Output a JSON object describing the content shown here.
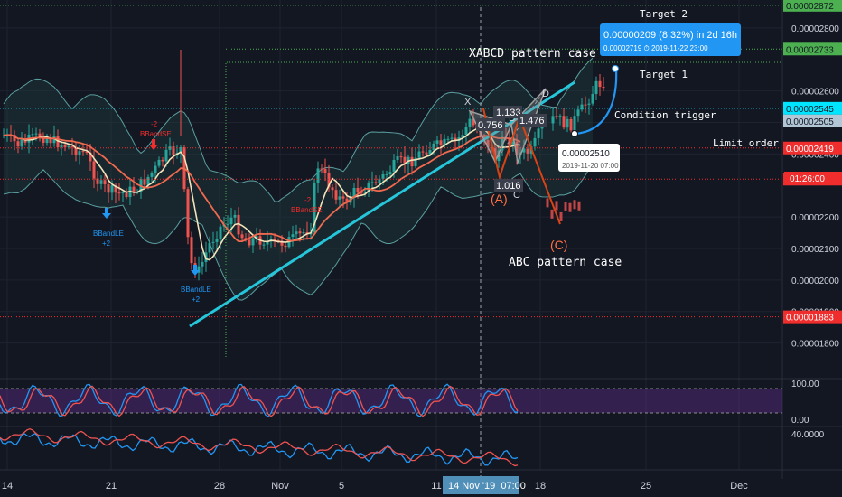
{
  "chart_data": {
    "type": "candlestick",
    "x_tick_labels": [
      "14",
      "21",
      "28",
      "Nov",
      "5",
      "11",
      "18",
      "25",
      "Dec"
    ],
    "crosshair_x_label": "14 Nov '19  07:00",
    "price_axis": {
      "ticks": [
        "0.00002800",
        "0.00002600",
        "0.00002500",
        "0.00002400",
        "0.00002200",
        "0.00002100",
        "0.00002000",
        "0.00001900",
        "0.00001800"
      ],
      "ylim": [
        1.75e-05,
        2.86e-05
      ]
    },
    "price_levels": [
      {
        "value": "0.00002872",
        "color": "#4caf50",
        "line": "green-dotted",
        "text_color": "#131722"
      },
      {
        "value": "0.00002733",
        "color": "#4caf50",
        "line": "green-dotted",
        "text_color": "#131722"
      },
      {
        "value": "0.00002545",
        "color": "#00e5ff",
        "line": "cyan-dotted",
        "text_color": "#131722"
      },
      {
        "value": "0.00002505",
        "color": "#b2c6d6",
        "line": "none",
        "text_color": "#131722"
      },
      {
        "value": "0.00002419",
        "color": "#ef2d2d",
        "line": "red-dotted",
        "text_color": "#ffffff"
      },
      {
        "value": "0.00002320",
        "color": "#ef2d2d",
        "line": "red-dotted",
        "text_color": "#ffffff"
      },
      {
        "value": "0.00001883",
        "color": "#ef2d2d",
        "line": "red-dotted",
        "text_color": "#ffffff"
      }
    ],
    "countdown_label": "01:26:00",
    "annotations": {
      "target2": "Target 2",
      "target1": "Target 1",
      "xabcd_title": "XABCD pattern case",
      "condition_trigger": "Condition trigger",
      "limit_order": "Limit order",
      "abc_title": "ABC pattern case",
      "point_x": "X",
      "point_b": "B",
      "point_c": "C",
      "point_d": "D",
      "point_a_circled": "(A)",
      "point_c_circled": "(C)",
      "ratio_1": "1.133",
      "ratio_2": "0.756",
      "ratio_3": "1.476",
      "ratio_4": "1.016",
      "bband_le_1": "BBandLE",
      "bband_le_1_qty": "+2",
      "bband_le_2": "BBandLE",
      "bband_le_2_qty": "+2",
      "bband_se_1_qty": "-2",
      "bband_se_1": "BBandSE",
      "bband_se_2": "BBandSE",
      "bband_se_2_qty": "-2",
      "limit_tooltip_price": "0.00002510",
      "limit_tooltip_time": "2019-11-20 07:00",
      "target_tooltip_main": "0.00000209 (8.32%) in 2d 16h",
      "target_tooltip_sub": "0.00002719 ⏱ 2019-11-22  23:00"
    },
    "stoch_panel": {
      "ticks": [
        "100.00",
        "0.00"
      ],
      "levels": [
        80,
        20
      ]
    },
    "third_panel": {
      "ticks": [
        "40.0000"
      ]
    },
    "colors": {
      "background": "#131722",
      "bull": "#26a69a",
      "bear": "#ef5350",
      "trendline": "#26c6da",
      "ma_fast": "#f3e3b9",
      "ma_slow": "#ef6a4f",
      "band": "#5a9fa0",
      "projection": "#2196f3",
      "abc_leg": "#d84315",
      "xabcd_fill": "#9e9e9e"
    }
  }
}
